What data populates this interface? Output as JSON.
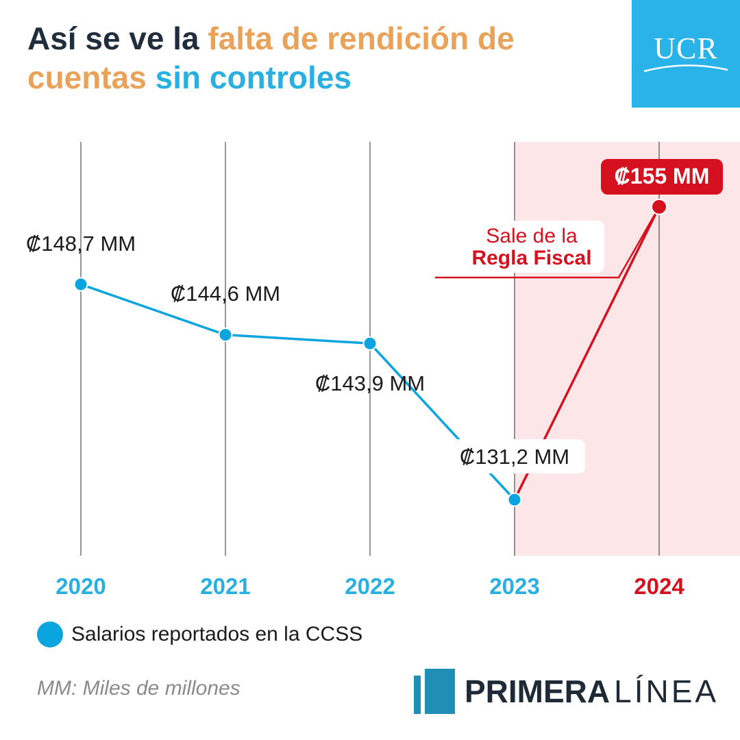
{
  "header": {
    "title_part1": "Así se ve la ",
    "title_part2": "falta de rendición de cuentas",
    "title_part3": " sin controles"
  },
  "logo": {
    "text": "UCR"
  },
  "colors": {
    "series_blue": "#0aa4df",
    "highlight_red": "#d6111f",
    "highlight_band": "#fde6e8",
    "year_blue": "#29b0e0",
    "title_orange": "#e8a25a"
  },
  "chart_data": {
    "type": "line",
    "x": [
      "2020",
      "2021",
      "2022",
      "2023",
      "2024"
    ],
    "series": [
      {
        "name": "Salarios reportados en la CCSS",
        "values": [
          148.7,
          144.6,
          143.9,
          131.2,
          155
        ],
        "labels": [
          "₡148,7 MM",
          "₡144,6 MM",
          "₡143,9 MM",
          "₡131,2 MM",
          "₡155 MM"
        ]
      }
    ],
    "highlight": {
      "from": "2023",
      "to": "2024",
      "color": "#d6111f"
    },
    "annotation": {
      "line1": "Sale de la",
      "line2": "Regla Fiscal"
    },
    "grid": "vertical"
  },
  "legend": {
    "label": "Salarios reportados en la CCSS"
  },
  "footnote": "MM: Miles de millones",
  "brand": {
    "word1": "PRIMERA",
    "word2": "LÍNEA"
  }
}
